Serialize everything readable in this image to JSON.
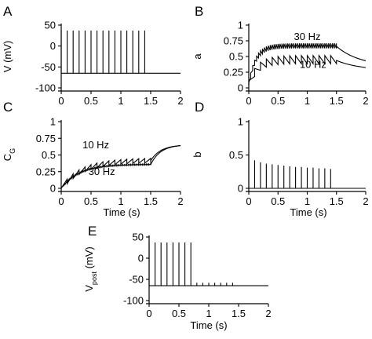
{
  "chart_data": [
    {
      "id": "A",
      "panel_letter": "A",
      "type": "line",
      "xlabel": "",
      "ylabel": "V (mV)",
      "xlim": [
        0,
        2
      ],
      "ylim": [
        -100,
        50
      ],
      "xticks": [
        "0",
        "0.5",
        "1",
        "1.5",
        "2"
      ],
      "yticks": [
        "-100",
        "-50",
        "0",
        "50"
      ],
      "xtick_values": [
        0,
        0.5,
        1,
        1.5,
        2
      ],
      "ytick_values": [
        -100,
        -50,
        0,
        50
      ],
      "series": [
        {
          "kind": "spike_train",
          "baseline": -65,
          "peak": 37,
          "spike_times": [
            0.0,
            0.1,
            0.2,
            0.3,
            0.4,
            0.5,
            0.6,
            0.7,
            0.8,
            0.9,
            1.0,
            1.1,
            1.2,
            1.3,
            1.4
          ],
          "x_end": 2
        }
      ],
      "annotations": []
    },
    {
      "id": "B",
      "panel_letter": "B",
      "type": "line",
      "xlabel": "",
      "ylabel": "a",
      "xlim": [
        0,
        2
      ],
      "ylim": [
        0,
        1
      ],
      "xticks": [
        "0",
        "0.5",
        "1",
        "1.5",
        "2"
      ],
      "yticks": [
        "0",
        "0.25",
        "0.5",
        "0.75",
        "1"
      ],
      "xtick_values": [
        0,
        0.5,
        1,
        1.5,
        2
      ],
      "ytick_values": [
        0,
        0.25,
        0.5,
        0.75,
        1
      ],
      "series": [
        {
          "name": "30 Hz",
          "kind": "facilitation",
          "step_times_interval": 0.0333,
          "step_end": 1.5,
          "start": 0.05,
          "plateau": 0.67,
          "rise_tau": 0.12,
          "jump": 0.08,
          "decay_tau": 0.4,
          "end_value": 0.34,
          "x_end": 2
        },
        {
          "name": "10 Hz",
          "kind": "facilitation",
          "step_times_interval": 0.1,
          "step_end": 1.5,
          "start": 0.05,
          "plateau": 0.45,
          "rise_tau": 0.15,
          "jump": 0.13,
          "decay_tau": 0.4,
          "end_value": 0.28,
          "x_end": 2
        }
      ],
      "annotations": [
        {
          "text": "30 Hz",
          "at": [
            1.0,
            0.76
          ]
        },
        {
          "text": "10 Hz",
          "at": [
            1.1,
            0.32
          ]
        }
      ]
    },
    {
      "id": "C",
      "panel_letter": "C",
      "type": "line",
      "xlabel": "Time (s)",
      "ylabel": "CG",
      "ylabel_main": "C",
      "ylabel_sub": "G",
      "xlim": [
        0,
        2
      ],
      "ylim": [
        0,
        1
      ],
      "xticks": [
        "0",
        "0.5",
        "1",
        "1.5",
        "2"
      ],
      "yticks": [
        "0",
        "0.25",
        "0.5",
        "0.75",
        "1"
      ],
      "xtick_values": [
        0,
        0.5,
        1,
        1.5,
        2
      ],
      "ytick_values": [
        0,
        0.25,
        0.5,
        0.75,
        1
      ],
      "series": [
        {
          "name": "10 Hz",
          "kind": "sawtooth_rise",
          "interval": 0.1,
          "step_end": 1.5,
          "plateau": 0.42,
          "rise_tau": 0.35,
          "drop": 0.07,
          "end_value": 0.64,
          "x_end": 2
        },
        {
          "name": "30 Hz",
          "kind": "sawtooth_rise",
          "interval": 0.0333,
          "step_end": 1.5,
          "plateau": 0.36,
          "rise_tau": 0.3,
          "drop": 0.02,
          "end_value": 0.64,
          "x_end": 2
        }
      ],
      "annotations": [
        {
          "text": "10 Hz",
          "at": [
            0.58,
            0.6
          ]
        },
        {
          "text": "30 Hz",
          "at": [
            0.68,
            0.2
          ]
        }
      ]
    },
    {
      "id": "D",
      "panel_letter": "D",
      "type": "bar",
      "xlabel": "Time (s)",
      "ylabel": "b",
      "xlim": [
        0,
        2
      ],
      "ylim": [
        0,
        1
      ],
      "xticks": [
        "0",
        "0.5",
        "1",
        "1.5",
        "2"
      ],
      "yticks": [
        "0",
        "0.5",
        "1"
      ],
      "xtick_values": [
        0,
        0.5,
        1,
        1.5,
        2
      ],
      "ytick_values": [
        0,
        0.5,
        1
      ],
      "series": [
        {
          "kind": "impulses",
          "x": [
            0.0,
            0.1,
            0.2,
            0.3,
            0.4,
            0.5,
            0.6,
            0.7,
            0.8,
            0.9,
            1.0,
            1.1,
            1.2,
            1.3,
            1.4
          ],
          "values": [
            0.5,
            0.42,
            0.39,
            0.37,
            0.36,
            0.35,
            0.34,
            0.33,
            0.32,
            0.32,
            0.31,
            0.31,
            0.3,
            0.3,
            0.29
          ]
        }
      ],
      "annotations": []
    },
    {
      "id": "E",
      "panel_letter": "E",
      "type": "line",
      "xlabel": "Time (s)",
      "ylabel": "Vpost (mV)",
      "ylabel_main": "V",
      "ylabel_sub": "post",
      "ylabel_tail": " (mV)",
      "xlim": [
        0,
        2
      ],
      "ylim": [
        -100,
        50
      ],
      "xticks": [
        "0",
        "0.5",
        "1",
        "1.5",
        "2"
      ],
      "yticks": [
        "-100",
        "-50",
        "0",
        "50"
      ],
      "xtick_values": [
        0,
        0.5,
        1,
        1.5,
        2
      ],
      "ytick_values": [
        -100,
        -50,
        0,
        50
      ],
      "series": [
        {
          "kind": "spike_train",
          "baseline": -65,
          "peak": 37,
          "spike_times": [
            0.0,
            0.1,
            0.2,
            0.3,
            0.4,
            0.5,
            0.6,
            0.7
          ],
          "x_end": 2
        },
        {
          "kind": "small_bumps",
          "baseline": -65,
          "peak": -58,
          "spike_times": [
            0.8,
            0.9,
            1.0,
            1.1,
            1.2,
            1.3,
            1.4
          ]
        }
      ],
      "annotations": []
    }
  ]
}
